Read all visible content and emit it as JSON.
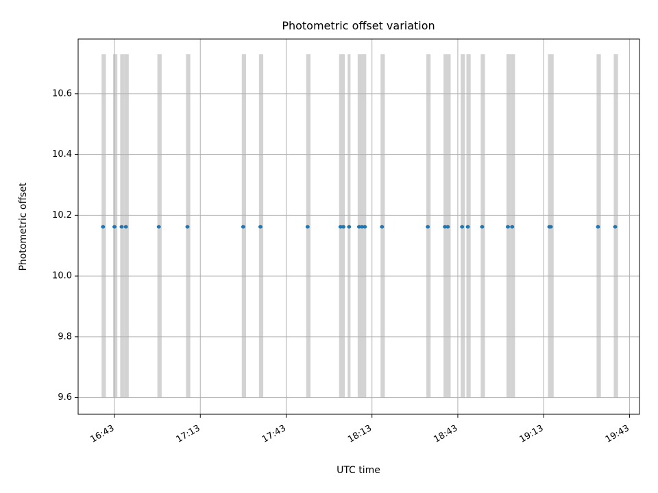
{
  "chart_data": {
    "type": "scatter",
    "title": "Photometric offset variation",
    "xlabel": "UTC time",
    "ylabel": "Photometric offset",
    "x_type": "time",
    "x_ticks": [
      "16:43",
      "17:13",
      "17:43",
      "18:13",
      "18:43",
      "19:13",
      "19:43"
    ],
    "xlim": [
      "16:30:18",
      "19:46:30"
    ],
    "ylim": [
      9.545,
      10.78
    ],
    "y_ticks": [
      "9.6",
      "9.8",
      "10.0",
      "10.2",
      "10.4",
      "10.6"
    ],
    "grid": true,
    "colors": {
      "points": "#1f77b4",
      "bands": "#d3d3d3",
      "grid": "#b0b0b0"
    },
    "series": [
      {
        "values": [
          {
            "x": "16:39",
            "y": 10.162
          },
          {
            "x": "16:43",
            "y": 10.162
          },
          {
            "x": "16:45:30",
            "y": 10.162
          },
          {
            "x": "16:47",
            "y": 10.162
          },
          {
            "x": "16:58:30",
            "y": 10.162
          },
          {
            "x": "17:08:30",
            "y": 10.162
          },
          {
            "x": "17:28",
            "y": 10.162
          },
          {
            "x": "17:34",
            "y": 10.162
          },
          {
            "x": "17:50:30",
            "y": 10.162
          },
          {
            "x": "18:02",
            "y": 10.162
          },
          {
            "x": "18:03",
            "y": 10.162
          },
          {
            "x": "18:05",
            "y": 10.162
          },
          {
            "x": "18:08:30",
            "y": 10.162
          },
          {
            "x": "18:09:30",
            "y": 10.162
          },
          {
            "x": "18:10:30",
            "y": 10.162
          },
          {
            "x": "18:16:30",
            "y": 10.162
          },
          {
            "x": "18:32:30",
            "y": 10.162
          },
          {
            "x": "18:38:30",
            "y": 10.162
          },
          {
            "x": "18:39:30",
            "y": 10.162
          },
          {
            "x": "18:44:30",
            "y": 10.162
          },
          {
            "x": "18:46:30",
            "y": 10.162
          },
          {
            "x": "18:51:30",
            "y": 10.162
          },
          {
            "x": "19:00:30",
            "y": 10.162
          },
          {
            "x": "19:02",
            "y": 10.162
          },
          {
            "x": "19:15",
            "y": 10.162
          },
          {
            "x": "19:15:30",
            "y": 10.162
          },
          {
            "x": "19:32",
            "y": 10.162
          },
          {
            "x": "19:38",
            "y": 10.162
          }
        ]
      }
    ],
    "bands": {
      "y_range": [
        9.6,
        10.73
      ],
      "x_ranges": [
        [
          "16:38:30",
          "16:40"
        ],
        [
          "16:42:30",
          "16:44"
        ],
        [
          "16:45",
          "16:46:30"
        ],
        [
          "16:46:30",
          "16:48"
        ],
        [
          "16:58",
          "16:59:30"
        ],
        [
          "17:08",
          "17:09:30"
        ],
        [
          "17:27:30",
          "17:29"
        ],
        [
          "17:33:30",
          "17:35"
        ],
        [
          "17:50",
          "17:51:30"
        ],
        [
          "18:01:30",
          "18:03:30"
        ],
        [
          "18:04:30",
          "18:05:30"
        ],
        [
          "18:08",
          "18:11"
        ],
        [
          "18:16",
          "18:17:30"
        ],
        [
          "18:32",
          "18:33:30"
        ],
        [
          "18:38",
          "18:40:30"
        ],
        [
          "18:44",
          "18:45:30"
        ],
        [
          "18:46",
          "18:47:30"
        ],
        [
          "18:51",
          "18:52:30"
        ],
        [
          "19:00",
          "19:01:30"
        ],
        [
          "19:01:30",
          "19:03"
        ],
        [
          "19:14:30",
          "19:16:30"
        ],
        [
          "19:31:30",
          "19:33"
        ],
        [
          "19:37:30",
          "19:39"
        ]
      ]
    }
  }
}
